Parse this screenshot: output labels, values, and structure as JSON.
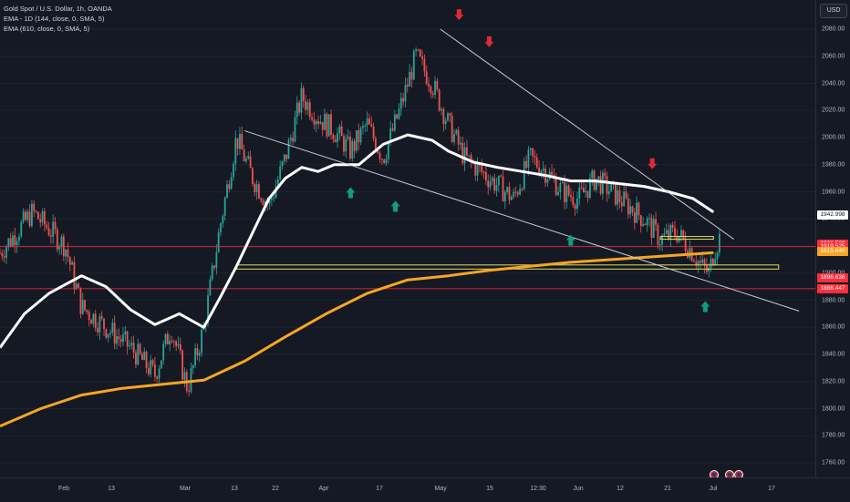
{
  "legend": {
    "symbol": "Gold Spot / U.S. Dollar, 1h, OANDA",
    "ema1": "EMA - 1D (144, close, 0, SMA, 5)",
    "ema2": "EMA (610, close, 0, SMA, 5)"
  },
  "currency": "USD",
  "colors": {
    "background": "#151924",
    "candle_up": "#26a69a",
    "candle_down": "#ef5350",
    "ema144": "#ffffff",
    "ema610": "#f5a623",
    "trendline": "#c8cbd2",
    "zone": "#e0e066",
    "red_level": "#ff2e3b",
    "arrow_down": "#e0283a",
    "arrow_up": "#0f9d84"
  },
  "chart_data": {
    "type": "line",
    "symbol": "XAUUSD",
    "timeframe": "1h",
    "ylim": [
      1745,
      2105
    ],
    "y_ticks": [
      1760,
      1780,
      1800,
      1820,
      1840,
      1860,
      1880,
      1900,
      1920,
      1940,
      1960,
      1980,
      2000,
      2020,
      2040,
      2060,
      2080
    ],
    "x_ticks": [
      "Feb",
      "13",
      "Mar",
      "13",
      "22",
      "Apr",
      "17",
      "May",
      "15",
      "12:30",
      "Jun",
      "12",
      "21",
      "Jul",
      "17"
    ],
    "price_labels": [
      {
        "value": 1942.998,
        "text": "1942.998",
        "color": "#ffffff"
      },
      {
        "value": 1921.529,
        "text": "1921.529",
        "color": "#ff2e3b"
      },
      {
        "value": 1919.525,
        "text": "1919.525",
        "color": "#ff2e3b"
      },
      {
        "value": 1915.64,
        "text": "1915.640",
        "color": "#f5a623"
      },
      {
        "value": 1896.636,
        "text": "1896.636",
        "color": "#ff2e3b"
      },
      {
        "value": 1888.447,
        "text": "1888.447",
        "color": "#ff2e3b"
      }
    ],
    "price_series": {
      "name": "",
      "x": [
        0,
        0.04,
        0.08,
        0.1,
        0.13,
        0.16,
        0.19,
        0.21,
        0.23,
        0.25,
        0.27,
        0.29,
        0.31,
        0.33,
        0.35,
        0.37,
        0.39,
        0.41,
        0.43,
        0.45,
        0.47,
        0.49,
        0.51,
        0.53,
        0.55,
        0.57,
        0.59,
        0.61,
        0.63,
        0.65,
        0.67,
        0.69,
        0.71,
        0.73,
        0.75,
        0.77,
        0.79,
        0.81,
        0.83,
        0.85,
        0.86,
        0.87,
        0.875,
        0.885
      ],
      "y": [
        1915,
        1945,
        1920,
        1875,
        1860,
        1845,
        1825,
        1860,
        1815,
        1860,
        1935,
        2000,
        1970,
        1950,
        1985,
        2030,
        2015,
        2005,
        1990,
        2010,
        1985,
        2020,
        2060,
        2040,
        2010,
        1985,
        1975,
        1965,
        1955,
        1985,
        1975,
        1960,
        1955,
        1970,
        1960,
        1950,
        1940,
        1925,
        1930,
        1915,
        1905,
        1900,
        1915,
        1930
      ]
    },
    "ema_144": {
      "name": "EMA - 1D (144, close, 0, SMA, 5)",
      "x": [
        0,
        0.03,
        0.06,
        0.1,
        0.13,
        0.16,
        0.19,
        0.22,
        0.25,
        0.27,
        0.29,
        0.31,
        0.33,
        0.35,
        0.37,
        0.39,
        0.41,
        0.44,
        0.47,
        0.5,
        0.53,
        0.55,
        0.58,
        0.61,
        0.64,
        0.67,
        0.7,
        0.73,
        0.76,
        0.79,
        0.82,
        0.85,
        0.875
      ],
      "y": [
        1845,
        1870,
        1885,
        1898,
        1890,
        1873,
        1862,
        1870,
        1860,
        1882,
        1905,
        1930,
        1955,
        1970,
        1978,
        1975,
        1980,
        1980,
        1995,
        2002,
        1998,
        1990,
        1982,
        1978,
        1975,
        1972,
        1968,
        1968,
        1966,
        1964,
        1960,
        1955,
        1945
      ]
    },
    "ema_610": {
      "name": "EMA (610, close, 0, SMA, 5)",
      "x": [
        0,
        0.05,
        0.1,
        0.15,
        0.2,
        0.25,
        0.3,
        0.35,
        0.4,
        0.45,
        0.5,
        0.55,
        0.6,
        0.65,
        0.7,
        0.75,
        0.8,
        0.85,
        0.875
      ],
      "y": [
        1787,
        1800,
        1810,
        1815,
        1818,
        1821,
        1835,
        1853,
        1870,
        1885,
        1895,
        1898,
        1902,
        1905,
        1908,
        1910,
        1912,
        1914,
        1915
      ]
    },
    "trendlines": [
      {
        "x": [
          0.3,
          0.98
        ],
        "y": [
          2005,
          1872
        ]
      },
      {
        "x": [
          0.54,
          0.9
        ],
        "y": [
          2080,
          1925
        ]
      }
    ],
    "zones": [
      {
        "x": [
          0.29,
          0.955
        ],
        "y": [
          1903,
          1906
        ]
      },
      {
        "x": [
          0.81,
          0.875
        ],
        "y": [
          1925,
          1927
        ]
      }
    ],
    "levels": [
      {
        "y": 1919.5,
        "color": "#ff2e3b"
      },
      {
        "y": 1888.5,
        "color": "#ff2e3b"
      }
    ],
    "arrows_down": [
      {
        "x": 0.563,
        "y": 2090
      },
      {
        "x": 0.6,
        "y": 2070
      },
      {
        "x": 0.8,
        "y": 1980
      }
    ],
    "arrows_up": [
      {
        "x": 0.43,
        "y": 1960
      },
      {
        "x": 0.485,
        "y": 1950
      },
      {
        "x": 0.7,
        "y": 1925
      },
      {
        "x": 0.865,
        "y": 1876
      }
    ]
  }
}
